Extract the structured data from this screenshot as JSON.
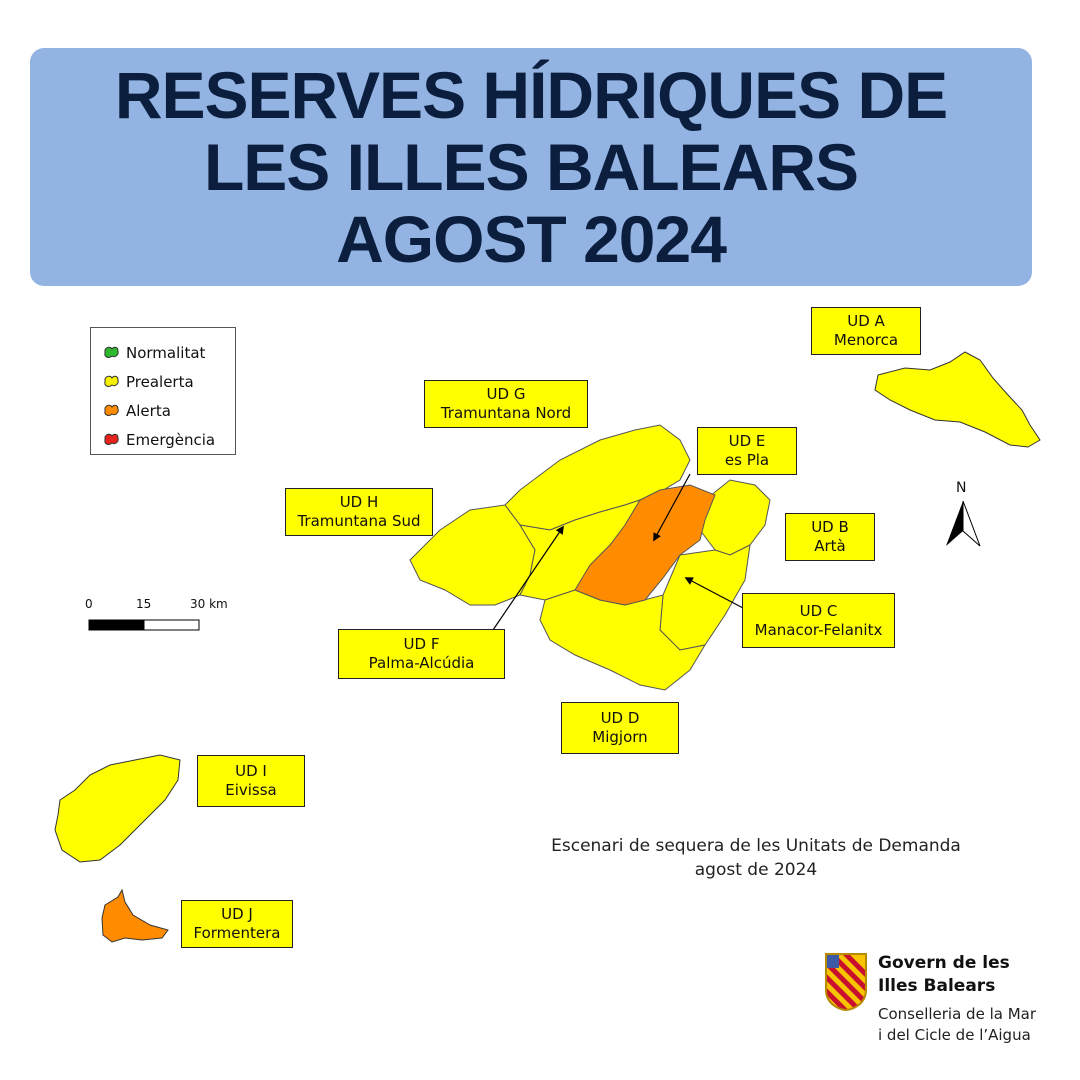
{
  "title": {
    "line1": "RESERVES HÍDRIQUES DE",
    "line2": "LES ILLES BALEARS",
    "line3": "AGOST 2024"
  },
  "colors": {
    "title_bg": "#93b4e3",
    "title_text": "#0c1e3e",
    "normalitat": "#2db82d",
    "prealerta": "#ffff00",
    "alerta": "#ff8c00",
    "emergencia": "#e8231c",
    "label_bg": "#ffff00"
  },
  "legend": {
    "items": [
      {
        "label": "Normalitat",
        "color": "#2db82d"
      },
      {
        "label": "Prealerta",
        "color": "#f7f000"
      },
      {
        "label": "Alerta",
        "color": "#ff8c00"
      },
      {
        "label": "Emergència",
        "color": "#e8231c"
      }
    ]
  },
  "zones": {
    "a": {
      "code": "UD A",
      "name": "Menorca",
      "status": "Prealerta"
    },
    "b": {
      "code": "UD B",
      "name": "Artà",
      "status": "Prealerta"
    },
    "c": {
      "code": "UD C",
      "name": "Manacor-Felanitx",
      "status": "Prealerta"
    },
    "d": {
      "code": "UD D",
      "name": "Migjorn",
      "status": "Prealerta"
    },
    "e": {
      "code": "UD E",
      "name": "es Pla",
      "status": "Alerta"
    },
    "f": {
      "code": "UD F",
      "name": "Palma-Alcúdia",
      "status": "Prealerta"
    },
    "g": {
      "code": "UD G",
      "name": "Tramuntana Nord",
      "status": "Prealerta"
    },
    "h": {
      "code": "UD H",
      "name": "Tramuntana Sud",
      "status": "Prealerta"
    },
    "i": {
      "code": "UD I",
      "name": "Eivissa",
      "status": "Prealerta"
    },
    "j": {
      "code": "UD J",
      "name": "Formentera",
      "status": "Alerta"
    }
  },
  "scale": {
    "tick0": "0",
    "tick1": "15",
    "tick2": "30 km"
  },
  "north": "N",
  "caption": {
    "line1": "Escenari de sequera de les Unitats de Demanda",
    "line2": "agost de 2024"
  },
  "logo": {
    "line1": "Govern de les",
    "line2": "Illes Balears",
    "line3": "Conselleria de la Mar",
    "line4": "i del Cicle de l’Aigua"
  }
}
